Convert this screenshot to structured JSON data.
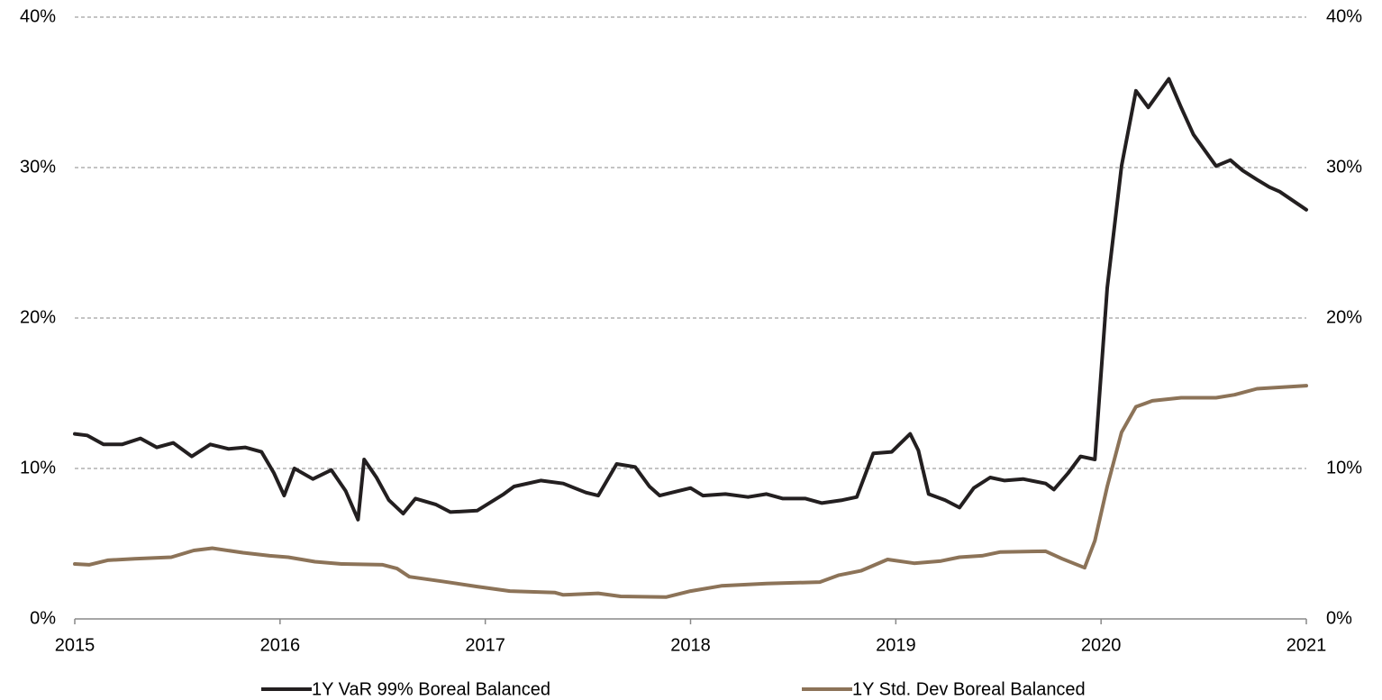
{
  "chart_data": {
    "type": "line",
    "xlim": [
      2015,
      2021
    ],
    "xticks": [
      2015,
      2016,
      2017,
      2018,
      2019,
      2020,
      2021
    ],
    "ylim": [
      0,
      40
    ],
    "yticks": [
      {
        "value": 0,
        "label": "0%"
      },
      {
        "value": 10,
        "label": "10%"
      },
      {
        "value": 20,
        "label": "20%"
      },
      {
        "value": 30,
        "label": "30%"
      },
      {
        "value": 40,
        "label": "40%"
      }
    ],
    "y2lim": [
      0,
      40
    ],
    "y2ticks": [
      {
        "value": 0,
        "label": "0%"
      },
      {
        "value": 10,
        "label": "10%"
      },
      {
        "value": 20,
        "label": "20%"
      },
      {
        "value": 30,
        "label": "30%"
      },
      {
        "value": 40,
        "label": "40%"
      }
    ],
    "grid": true,
    "legend": "bottom",
    "series": [
      {
        "name": "1Y VaR 99% Boreal Balanced",
        "color": "#231f20",
        "x": [
          2015.0,
          2015.06,
          2015.14,
          2015.23,
          2015.32,
          2015.4,
          2015.48,
          2015.57,
          2015.66,
          2015.75,
          2015.83,
          2015.91,
          2015.97,
          2016.02,
          2016.07,
          2016.16,
          2016.25,
          2016.32,
          2016.38,
          2016.41,
          2016.47,
          2016.53,
          2016.6,
          2016.66,
          2016.76,
          2016.83,
          2016.96,
          2017.09,
          2017.14,
          2017.27,
          2017.38,
          2017.49,
          2017.55,
          2017.64,
          2017.73,
          2017.8,
          2017.85,
          2017.91,
          2018.0,
          2018.06,
          2018.17,
          2018.28,
          2018.37,
          2018.45,
          2018.56,
          2018.64,
          2018.74,
          2018.81,
          2018.89,
          2018.98,
          2019.07,
          2019.11,
          2019.16,
          2019.24,
          2019.31,
          2019.38,
          2019.46,
          2019.53,
          2019.62,
          2019.73,
          2019.77,
          2019.84,
          2019.9,
          2019.97,
          2020.03,
          2020.1,
          2020.17,
          2020.23,
          2020.33,
          2020.39,
          2020.45,
          2020.56,
          2020.63,
          2020.69,
          2020.76,
          2020.82,
          2020.87,
          2021.0
        ],
        "values": [
          12.3,
          12.2,
          11.6,
          11.6,
          12.0,
          11.4,
          11.7,
          10.8,
          11.6,
          11.3,
          11.4,
          11.1,
          9.7,
          8.2,
          10.0,
          9.3,
          9.9,
          8.5,
          6.6,
          10.6,
          9.4,
          7.9,
          7.0,
          8.0,
          7.6,
          7.1,
          7.2,
          8.3,
          8.8,
          9.2,
          9.0,
          8.4,
          8.2,
          10.3,
          10.1,
          8.8,
          8.2,
          8.4,
          8.7,
          8.2,
          8.3,
          8.1,
          8.3,
          8.0,
          8.0,
          7.7,
          7.9,
          8.1,
          11.0,
          11.1,
          12.3,
          11.2,
          8.3,
          7.9,
          7.4,
          8.7,
          9.4,
          9.2,
          9.3,
          9.0,
          8.6,
          9.7,
          10.8,
          10.6,
          22.0,
          30.1,
          35.1,
          34.0,
          35.9,
          34.0,
          32.2,
          30.1,
          30.5,
          29.8,
          29.2,
          28.7,
          28.4,
          27.2
        ]
      },
      {
        "name": "1Y Std. Dev Boreal Balanced",
        "color": "#8c7358",
        "x": [
          2015.0,
          2015.07,
          2015.16,
          2015.29,
          2015.47,
          2015.58,
          2015.67,
          2015.82,
          2015.95,
          2016.04,
          2016.17,
          2016.3,
          2016.5,
          2016.57,
          2016.63,
          2016.79,
          2016.96,
          2017.12,
          2017.34,
          2017.38,
          2017.55,
          2017.66,
          2017.88,
          2018.0,
          2018.15,
          2018.37,
          2018.63,
          2018.72,
          2018.83,
          2018.96,
          2019.09,
          2019.22,
          2019.31,
          2019.42,
          2019.51,
          2019.73,
          2019.81,
          2019.92,
          2019.97,
          2020.03,
          2020.1,
          2020.17,
          2020.25,
          2020.39,
          2020.56,
          2020.65,
          2020.76,
          2021.0
        ],
        "values": [
          3.65,
          3.6,
          3.9,
          4.0,
          4.1,
          4.55,
          4.7,
          4.4,
          4.2,
          4.1,
          3.8,
          3.65,
          3.6,
          3.35,
          2.8,
          2.5,
          2.15,
          1.85,
          1.75,
          1.6,
          1.7,
          1.5,
          1.45,
          1.85,
          2.2,
          2.35,
          2.45,
          2.9,
          3.2,
          3.95,
          3.7,
          3.85,
          4.1,
          4.2,
          4.45,
          4.5,
          4.0,
          3.4,
          5.2,
          8.8,
          12.4,
          14.1,
          14.5,
          14.7,
          14.7,
          14.9,
          15.3,
          15.5
        ]
      }
    ]
  }
}
